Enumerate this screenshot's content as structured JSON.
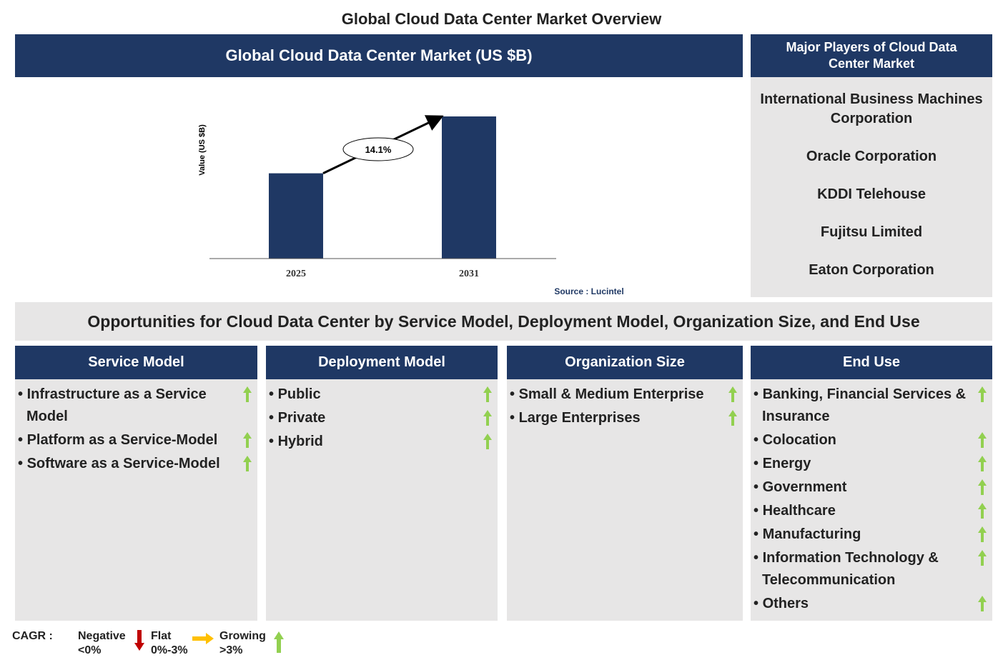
{
  "title": "Global Cloud Data Center Market Overview",
  "chart_data": {
    "type": "bar",
    "title": "Global Cloud Data Center Market (US $B)",
    "y_label": "Value (US $B)",
    "categories": [
      "2025",
      "2031"
    ],
    "values": [
      60,
      100
    ],
    "ylim": [
      0,
      100
    ],
    "color": "#1f3864",
    "annotation": "14.1%",
    "source": "Source : Lucintel"
  },
  "players": {
    "title": "Major Players of Cloud Data Center Market",
    "items": [
      "International Business Machines Corporation",
      "Oracle Corporation",
      "KDDI Telehouse",
      "Fujitsu Limited",
      "Eaton Corporation"
    ]
  },
  "opportunities": {
    "title": "Opportunities for Cloud Data Center by Service Model, Deployment Model, Organization Size, and End Use",
    "columns": [
      {
        "title": "Service Model",
        "items": [
          "Infrastructure as a Service Model",
          "Platform as a Service-Model",
          "Software as a Service-Model"
        ]
      },
      {
        "title": "Deployment Model",
        "items": [
          "Public",
          "Private",
          "Hybrid"
        ]
      },
      {
        "title": "Organization Size",
        "items": [
          "Small & Medium Enterprise",
          "Large Enterprises"
        ]
      },
      {
        "title": "End Use",
        "items": [
          "Banking, Financial Services & Insurance",
          "Colocation",
          "Energy",
          "Government",
          "Healthcare",
          "Manufacturing",
          "Information Technology & Telecommunication",
          "Others"
        ]
      }
    ]
  },
  "legend": {
    "label": "CAGR :",
    "items": [
      {
        "name": "Negative",
        "range": "<0%"
      },
      {
        "name": "Flat",
        "range": "0%-3%"
      },
      {
        "name": "Growing",
        "range": ">3%"
      }
    ]
  }
}
